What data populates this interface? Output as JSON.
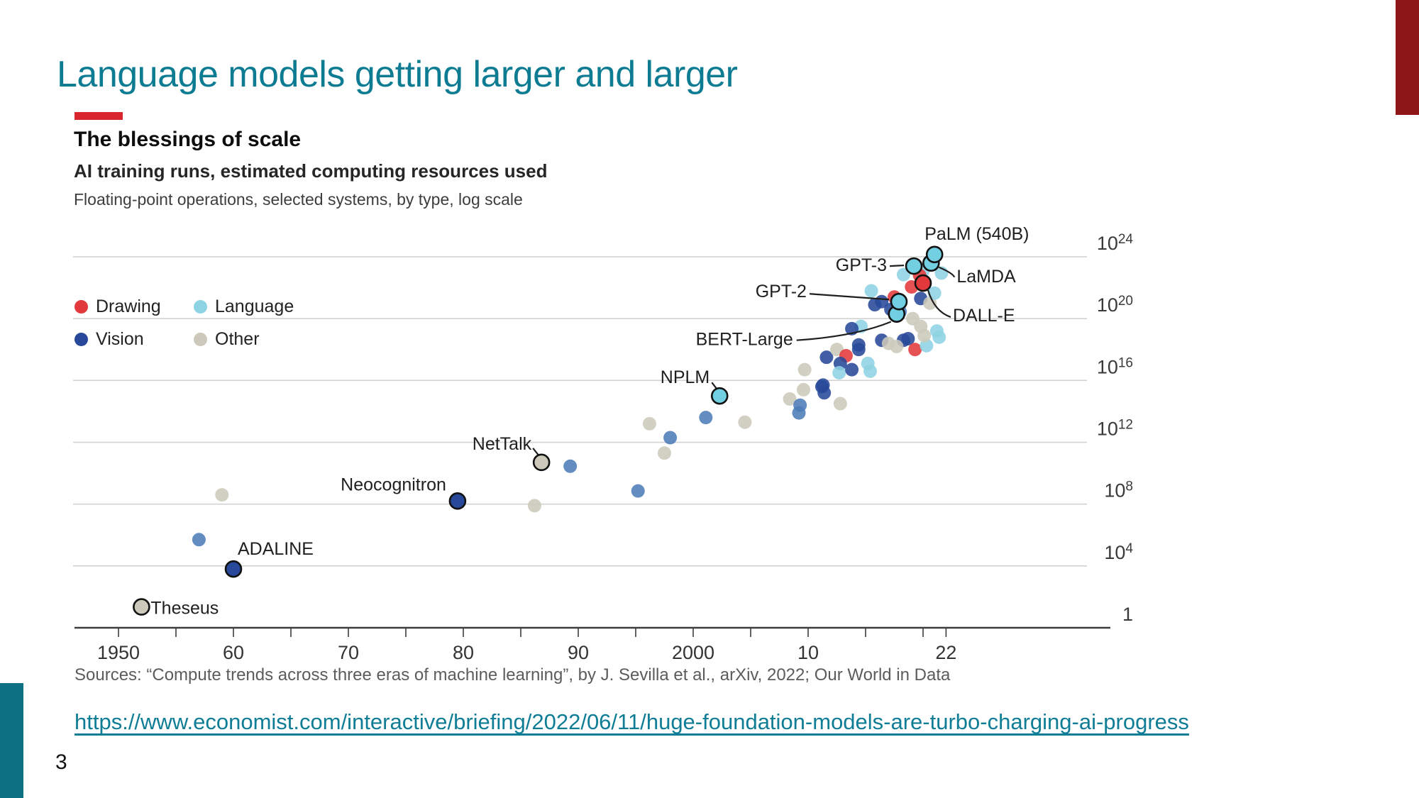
{
  "slide": {
    "title": "Language models getting larger and larger",
    "page_number": "3",
    "link_text": "https://www.economist.com/interactive/briefing/2022/06/11/huge-foundation-models-are-turbo-charging-ai-progress",
    "accent_colors": {
      "top_right_block": "#8c1716",
      "bottom_left_block": "#0d7183",
      "title_teal": "#0d7c92"
    }
  },
  "chart": {
    "kicker_color": "#d9252e",
    "title": "The blessings of scale",
    "subtitle": "AI training runs, estimated computing resources used",
    "note": "Floating-point operations, selected systems, by type, log scale",
    "source": "Sources: “Compute trends across three eras of machine learning”, by J. Sevilla et al., arXiv, 2022; Our World in Data",
    "legend": [
      {
        "label": "Drawing",
        "color_key": "drawing"
      },
      {
        "label": "Language",
        "color_key": "language"
      },
      {
        "label": "Vision",
        "color_key": "vision_dark"
      },
      {
        "label": "Other",
        "color_key": "other"
      }
    ]
  },
  "chart_data": {
    "type": "scatter",
    "title": "The blessings of scale",
    "subtitle": "AI training runs, estimated computing resources used",
    "unit_note": "Floating-point operations, selected systems, by type, log scale",
    "y_scale": "log",
    "y_ticks": [
      {
        "exp": 24,
        "label": "10^24"
      },
      {
        "exp": 20,
        "label": "10^20"
      },
      {
        "exp": 16,
        "label": "10^16"
      },
      {
        "exp": 12,
        "label": "10^12"
      },
      {
        "exp": 8,
        "label": "10^8"
      },
      {
        "exp": 4,
        "label": "10^4"
      },
      {
        "exp": 0,
        "label": "1"
      }
    ],
    "x_ticks_minor": [
      1950,
      1955,
      1960,
      1965,
      1970,
      1975,
      1980,
      1985,
      1990,
      1995,
      2000,
      2005,
      2010,
      2015,
      2020,
      2022
    ],
    "x_ticks_labeled": [
      {
        "year": 1950,
        "label": "1950"
      },
      {
        "year": 1960,
        "label": "60"
      },
      {
        "year": 1970,
        "label": "70"
      },
      {
        "year": 1980,
        "label": "80"
      },
      {
        "year": 1990,
        "label": "90"
      },
      {
        "year": 2000,
        "label": "2000"
      },
      {
        "year": 2010,
        "label": "10"
      },
      {
        "year": 2022,
        "label": "22"
      }
    ],
    "colors": {
      "drawing": "#e23a3c",
      "language": "#8ed3e4",
      "language_highlight": "#72cfe2",
      "vision": "#4d7cb8",
      "vision_dark": "#28499a",
      "other": "#ccc9ba",
      "grid": "#d2d2d2",
      "axis": "#3c3c3c",
      "annotation": "#1f1f1f"
    },
    "named_points": [
      {
        "name": "Theseus",
        "year": 1952.0,
        "exp": 1.35,
        "type": "other"
      },
      {
        "name": "ADALINE",
        "year": 1960.0,
        "exp": 3.8,
        "type": "vision_dark"
      },
      {
        "name": "Neocognitron",
        "year": 1979.5,
        "exp": 8.2,
        "type": "vision_dark"
      },
      {
        "name": "NetTalk",
        "year": 1986.8,
        "exp": 10.7,
        "type": "other"
      },
      {
        "name": "NPLM",
        "year": 2002.3,
        "exp": 15.0,
        "type": "language_highlight"
      },
      {
        "name": "BERT-Large",
        "year": 2017.7,
        "exp": 20.3,
        "type": "language_highlight"
      },
      {
        "name": "GPT-2",
        "year": 2017.9,
        "exp": 21.1,
        "type": "language_highlight"
      },
      {
        "name": "GPT-3",
        "year": 2019.2,
        "exp": 23.4,
        "type": "language_highlight"
      },
      {
        "name": "LaMDA",
        "year": 2020.7,
        "exp": 23.6,
        "type": "language_highlight"
      },
      {
        "name": "PaLM (540B)",
        "year": 2021.0,
        "exp": 24.15,
        "type": "language_highlight"
      },
      {
        "name": "DALL-E",
        "year": 2020.0,
        "exp": 22.3,
        "type": "drawing"
      }
    ],
    "points": [
      {
        "year": 1957.0,
        "exp": 5.7,
        "type": "vision"
      },
      {
        "year": 1959.0,
        "exp": 8.6,
        "type": "other"
      },
      {
        "year": 1986.2,
        "exp": 7.9,
        "type": "other"
      },
      {
        "year": 1989.3,
        "exp": 10.45,
        "type": "vision"
      },
      {
        "year": 1995.2,
        "exp": 8.85,
        "type": "vision"
      },
      {
        "year": 1996.2,
        "exp": 13.2,
        "type": "other"
      },
      {
        "year": 1997.5,
        "exp": 11.3,
        "type": "other"
      },
      {
        "year": 1998.0,
        "exp": 12.3,
        "type": "vision"
      },
      {
        "year": 2001.1,
        "exp": 13.6,
        "type": "vision"
      },
      {
        "year": 2004.5,
        "exp": 13.3,
        "type": "other"
      },
      {
        "year": 2008.4,
        "exp": 14.8,
        "type": "other"
      },
      {
        "year": 2009.3,
        "exp": 14.4,
        "type": "vision"
      },
      {
        "year": 2009.2,
        "exp": 13.9,
        "type": "vision"
      },
      {
        "year": 2009.6,
        "exp": 15.4,
        "type": "other"
      },
      {
        "year": 2009.7,
        "exp": 16.7,
        "type": "other"
      },
      {
        "year": 2011.2,
        "exp": 15.6,
        "type": "vision_dark"
      },
      {
        "year": 2011.4,
        "exp": 15.2,
        "type": "vision_dark"
      },
      {
        "year": 2012.8,
        "exp": 14.5,
        "type": "other"
      },
      {
        "year": 2011.6,
        "exp": 17.5,
        "type": "vision_dark"
      },
      {
        "year": 2012.5,
        "exp": 18.0,
        "type": "other"
      },
      {
        "year": 2013.3,
        "exp": 17.6,
        "type": "drawing"
      },
      {
        "year": 2014.4,
        "exp": 18.0,
        "type": "vision_dark"
      },
      {
        "year": 2012.8,
        "exp": 17.1,
        "type": "vision_dark"
      },
      {
        "year": 2012.7,
        "exp": 16.5,
        "type": "language"
      },
      {
        "year": 2013.8,
        "exp": 16.7,
        "type": "vision_dark"
      },
      {
        "year": 2015.2,
        "exp": 17.1,
        "type": "language"
      },
      {
        "year": 2015.4,
        "exp": 16.6,
        "type": "language"
      },
      {
        "year": 2011.3,
        "exp": 15.7,
        "type": "vision_dark"
      },
      {
        "year": 2014.6,
        "exp": 19.5,
        "type": "language"
      },
      {
        "year": 2013.8,
        "exp": 19.35,
        "type": "vision_dark"
      },
      {
        "year": 2014.4,
        "exp": 18.3,
        "type": "vision_dark"
      },
      {
        "year": 2016.4,
        "exp": 18.6,
        "type": "vision_dark"
      },
      {
        "year": 2017.0,
        "exp": 18.4,
        "type": "other"
      },
      {
        "year": 2018.3,
        "exp": 18.6,
        "type": "vision_dark"
      },
      {
        "year": 2017.7,
        "exp": 18.2,
        "type": "other"
      },
      {
        "year": 2018.7,
        "exp": 18.7,
        "type": "vision_dark"
      },
      {
        "year": 2019.3,
        "exp": 18.0,
        "type": "drawing"
      },
      {
        "year": 2020.3,
        "exp": 18.25,
        "type": "language"
      },
      {
        "year": 2020.1,
        "exp": 18.9,
        "type": "other"
      },
      {
        "year": 2021.4,
        "exp": 18.8,
        "type": "language"
      },
      {
        "year": 2021.2,
        "exp": 19.2,
        "type": "language"
      },
      {
        "year": 2015.5,
        "exp": 21.8,
        "type": "language"
      },
      {
        "year": 2015.8,
        "exp": 20.9,
        "type": "vision_dark"
      },
      {
        "year": 2016.4,
        "exp": 21.1,
        "type": "vision_dark"
      },
      {
        "year": 2017.5,
        "exp": 21.4,
        "type": "drawing"
      },
      {
        "year": 2019.1,
        "exp": 20.0,
        "type": "other"
      },
      {
        "year": 2019.8,
        "exp": 19.5,
        "type": "other"
      },
      {
        "year": 2019.8,
        "exp": 21.3,
        "type": "vision_dark"
      },
      {
        "year": 2020.6,
        "exp": 21.0,
        "type": "other"
      },
      {
        "year": 2021.0,
        "exp": 21.65,
        "type": "language"
      },
      {
        "year": 2018.3,
        "exp": 22.85,
        "type": "language"
      },
      {
        "year": 2020.0,
        "exp": 23.1,
        "type": "language"
      },
      {
        "year": 2019.7,
        "exp": 22.8,
        "type": "drawing"
      },
      {
        "year": 2019.0,
        "exp": 22.05,
        "type": "drawing"
      },
      {
        "year": 2021.6,
        "exp": 22.95,
        "type": "language"
      },
      {
        "year": 2017.2,
        "exp": 20.6,
        "type": "vision_dark"
      },
      {
        "year": 2018.0,
        "exp": 20.45,
        "type": "vision"
      }
    ]
  }
}
